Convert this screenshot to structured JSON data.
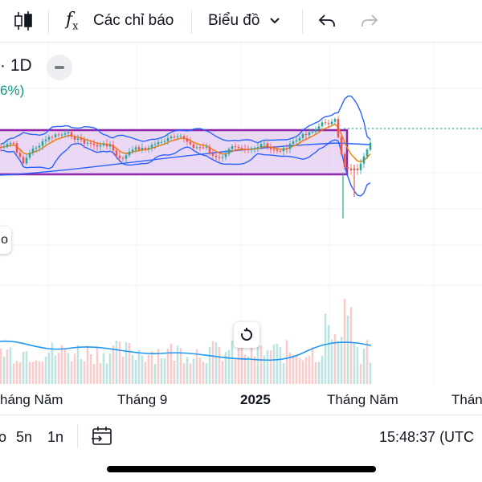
{
  "toolbar": {
    "indicators_label": "Các chỉ báo",
    "chart_type_label": "Biểu đồ"
  },
  "legend": {
    "symbol": "· 1D",
    "change": "6%)"
  },
  "side_tab_label": "o",
  "time_axis": {
    "labels": [
      "háng Năm",
      "Tháng 9",
      "2025",
      "Tháng Năm",
      "Thán"
    ]
  },
  "bottom": {
    "ranges": [
      "o",
      "5n",
      "1n"
    ],
    "clock": "15:48:37 (UTC"
  },
  "colors": {
    "up": "#26a69a",
    "down": "#ef5350",
    "bollinger": "#2962ff",
    "ema": "#f57c00",
    "rectangle_fill": "#d9b8ec",
    "rectangle_border": "#8e24aa",
    "volume_ma": "#2196f3",
    "change_text": "#089981"
  },
  "icons": [
    "candles-icon",
    "indicators-fx-icon",
    "chevron-down-icon",
    "undo-icon",
    "redo-icon",
    "reset-scale-icon",
    "date-range-icon"
  ]
}
